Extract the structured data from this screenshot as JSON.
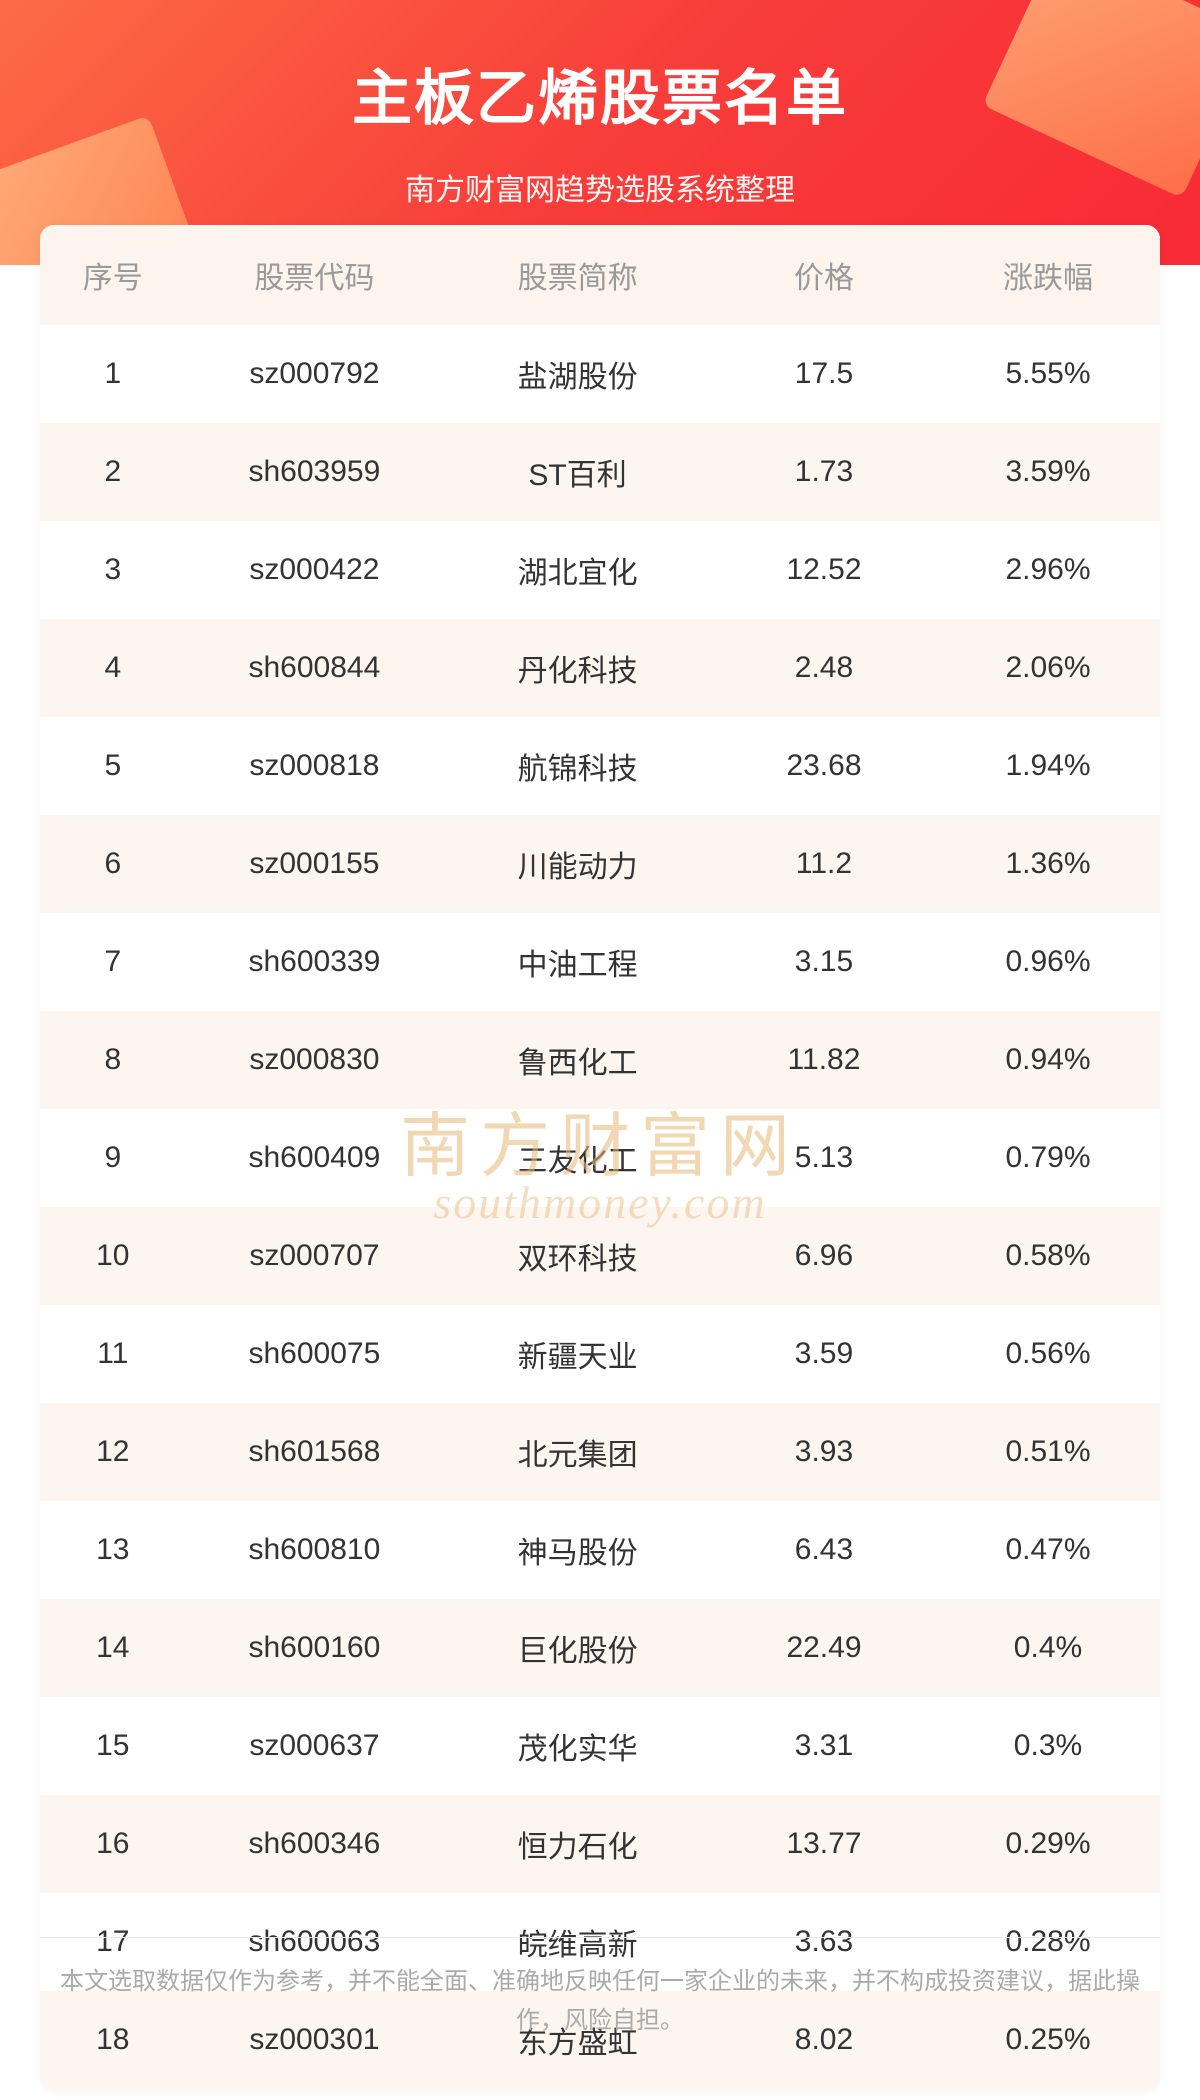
{
  "header": {
    "title": "主板乙烯股票名单",
    "subtitle": "南方财富网趋势选股系统整理",
    "bg_gradient": [
      "#fd6b45",
      "#f73e3a",
      "#f82a35"
    ],
    "title_color": "#ffffff",
    "title_fontsize": 60,
    "subtitle_fontsize": 30
  },
  "table": {
    "header_bg": "#fdf4ee",
    "header_color": "#9a9a9a",
    "row_even_bg": "#fdf5ef",
    "row_odd_bg": "#ffffff",
    "text_color": "#333333",
    "cell_fontsize": 30,
    "columns": [
      {
        "key": "idx",
        "label": "序号",
        "width": "13%"
      },
      {
        "key": "code",
        "label": "股票代码",
        "width": "23%"
      },
      {
        "key": "name",
        "label": "股票简称",
        "width": "24%"
      },
      {
        "key": "price",
        "label": "价格",
        "width": "20%"
      },
      {
        "key": "change",
        "label": "涨跌幅",
        "width": "20%"
      }
    ],
    "rows": [
      {
        "idx": "1",
        "code": "sz000792",
        "name": "盐湖股份",
        "price": "17.5",
        "change": "5.55%"
      },
      {
        "idx": "2",
        "code": "sh603959",
        "name": "ST百利",
        "price": "1.73",
        "change": "3.59%"
      },
      {
        "idx": "3",
        "code": "sz000422",
        "name": "湖北宜化",
        "price": "12.52",
        "change": "2.96%"
      },
      {
        "idx": "4",
        "code": "sh600844",
        "name": "丹化科技",
        "price": "2.48",
        "change": "2.06%"
      },
      {
        "idx": "5",
        "code": "sz000818",
        "name": "航锦科技",
        "price": "23.68",
        "change": "1.94%"
      },
      {
        "idx": "6",
        "code": "sz000155",
        "name": "川能动力",
        "price": "11.2",
        "change": "1.36%"
      },
      {
        "idx": "7",
        "code": "sh600339",
        "name": "中油工程",
        "price": "3.15",
        "change": "0.96%"
      },
      {
        "idx": "8",
        "code": "sz000830",
        "name": "鲁西化工",
        "price": "11.82",
        "change": "0.94%"
      },
      {
        "idx": "9",
        "code": "sh600409",
        "name": "三友化工",
        "price": "5.13",
        "change": "0.79%"
      },
      {
        "idx": "10",
        "code": "sz000707",
        "name": "双环科技",
        "price": "6.96",
        "change": "0.58%"
      },
      {
        "idx": "11",
        "code": "sh600075",
        "name": "新疆天业",
        "price": "3.59",
        "change": "0.56%"
      },
      {
        "idx": "12",
        "code": "sh601568",
        "name": "北元集团",
        "price": "3.93",
        "change": "0.51%"
      },
      {
        "idx": "13",
        "code": "sh600810",
        "name": "神马股份",
        "price": "6.43",
        "change": "0.47%"
      },
      {
        "idx": "14",
        "code": "sh600160",
        "name": "巨化股份",
        "price": "22.49",
        "change": "0.4%"
      },
      {
        "idx": "15",
        "code": "sz000637",
        "name": "茂化实华",
        "price": "3.31",
        "change": "0.3%"
      },
      {
        "idx": "16",
        "code": "sh600346",
        "name": "恒力石化",
        "price": "13.77",
        "change": "0.29%"
      },
      {
        "idx": "17",
        "code": "sh600063",
        "name": "皖维高新",
        "price": "3.63",
        "change": "0.28%"
      },
      {
        "idx": "18",
        "code": "sz000301",
        "name": "东方盛虹",
        "price": "8.02",
        "change": "0.25%"
      }
    ]
  },
  "watermark": {
    "cn": "南方财富网",
    "en": "southmoney.com",
    "color": "#e8b876"
  },
  "disclaimer": "本文选取数据仅作为参考，并不能全面、准确地反映任何一家企业的未来，并不构成投资建议，据此操作，风险自担。"
}
